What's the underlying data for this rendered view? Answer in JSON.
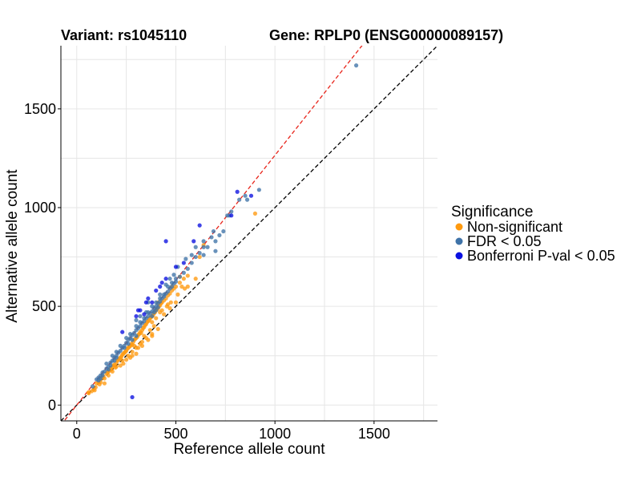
{
  "chart_data": {
    "type": "scatter",
    "title_variant": "Variant: rs1045110",
    "title_gene": "Gene: RPLP0 (ENSG00000089157)",
    "xlabel": "Reference allele count",
    "ylabel": "Alternative allele count",
    "xlim": [
      -80,
      1820
    ],
    "ylim": [
      -80,
      1820
    ],
    "xticks": [
      0,
      500,
      1000,
      1500
    ],
    "yticks": [
      0,
      500,
      1000,
      1500
    ],
    "grid": true,
    "reference_lines": [
      {
        "name": "identity",
        "slope": 1.0,
        "color": "#000000",
        "style": "dashed"
      },
      {
        "name": "fitted",
        "slope": 1.265,
        "color": "#e8251b",
        "style": "dashed"
      }
    ],
    "legend": {
      "title": "Significance",
      "position": "right",
      "items": [
        {
          "label": "Non-significant",
          "color": "#ff9a0f"
        },
        {
          "label": "FDR < 0.05",
          "color": "#3f73a8"
        },
        {
          "label": "Bonferroni P-val < 0.05",
          "color": "#0a10e0"
        }
      ]
    },
    "series": [
      {
        "name": "Non-significant",
        "color": "#ff9a0f",
        "points": [
          [
            60,
            65
          ],
          [
            75,
            70
          ],
          [
            85,
            80
          ],
          [
            95,
            90
          ],
          [
            100,
            110
          ],
          [
            110,
            115
          ],
          [
            115,
            105
          ],
          [
            120,
            130
          ],
          [
            130,
            140
          ],
          [
            135,
            145
          ],
          [
            140,
            135
          ],
          [
            150,
            160
          ],
          [
            155,
            165
          ],
          [
            160,
            170
          ],
          [
            165,
            175
          ],
          [
            170,
            185
          ],
          [
            175,
            180
          ],
          [
            180,
            195
          ],
          [
            185,
            200
          ],
          [
            190,
            205
          ],
          [
            195,
            190
          ],
          [
            200,
            215
          ],
          [
            205,
            225
          ],
          [
            210,
            230
          ],
          [
            215,
            235
          ],
          [
            220,
            240
          ],
          [
            225,
            245
          ],
          [
            230,
            255
          ],
          [
            235,
            260
          ],
          [
            240,
            265
          ],
          [
            245,
            270
          ],
          [
            250,
            275
          ],
          [
            255,
            285
          ],
          [
            260,
            290
          ],
          [
            265,
            295
          ],
          [
            270,
            300
          ],
          [
            275,
            310
          ],
          [
            280,
            305
          ],
          [
            285,
            320
          ],
          [
            290,
            330
          ],
          [
            295,
            335
          ],
          [
            300,
            340
          ],
          [
            305,
            345
          ],
          [
            310,
            355
          ],
          [
            315,
            360
          ],
          [
            320,
            370
          ],
          [
            325,
            365
          ],
          [
            330,
            380
          ],
          [
            335,
            390
          ],
          [
            340,
            395
          ],
          [
            345,
            405
          ],
          [
            350,
            410
          ],
          [
            355,
            420
          ],
          [
            360,
            425
          ],
          [
            365,
            430
          ],
          [
            370,
            440
          ],
          [
            375,
            445
          ],
          [
            380,
            450
          ],
          [
            385,
            455
          ],
          [
            390,
            465
          ],
          [
            395,
            470
          ],
          [
            400,
            480
          ],
          [
            405,
            485
          ],
          [
            410,
            490
          ],
          [
            415,
            500
          ],
          [
            420,
            505
          ],
          [
            425,
            515
          ],
          [
            430,
            520
          ],
          [
            440,
            530
          ],
          [
            450,
            540
          ],
          [
            460,
            555
          ],
          [
            470,
            565
          ],
          [
            480,
            580
          ],
          [
            490,
            590
          ],
          [
            500,
            600
          ],
          [
            520,
            620
          ],
          [
            540,
            640
          ],
          [
            560,
            655
          ],
          [
            280,
            270
          ],
          [
            350,
            340
          ],
          [
            380,
            360
          ],
          [
            300,
            290
          ],
          [
            260,
            250
          ],
          [
            420,
            470
          ],
          [
            460,
            510
          ],
          [
            500,
            520
          ],
          [
            230,
            225
          ],
          [
            180,
            170
          ],
          [
            200,
            195
          ],
          [
            120,
            115
          ],
          [
            160,
            150
          ],
          [
            360,
            330
          ],
          [
            440,
            460
          ],
          [
            470,
            490
          ],
          [
            235,
            210
          ],
          [
            320,
            310
          ],
          [
            380,
            420
          ],
          [
            400,
            440
          ],
          [
            310,
            290
          ],
          [
            270,
            240
          ],
          [
            300,
            260
          ],
          [
            330,
            320
          ],
          [
            220,
            200
          ],
          [
            250,
            230
          ],
          [
            280,
            250
          ],
          [
            290,
            300
          ],
          [
            340,
            350
          ],
          [
            370,
            380
          ],
          [
            390,
            400
          ],
          [
            430,
            480
          ],
          [
            455,
            500
          ],
          [
            475,
            520
          ],
          [
            510,
            560
          ],
          [
            530,
            600
          ],
          [
            545,
            590
          ],
          [
            620,
            750
          ],
          [
            640,
            810
          ],
          [
            900,
            970
          ],
          [
            410,
            520
          ],
          [
            480,
            600
          ],
          [
            520,
            650
          ],
          [
            380,
            350
          ],
          [
            410,
            385
          ],
          [
            330,
            300
          ],
          [
            560,
            600
          ],
          [
            600,
            640
          ],
          [
            140,
            110
          ],
          [
            90,
            75
          ],
          [
            60,
            60
          ]
        ]
      },
      {
        "name": "FDR < 0.05",
        "color": "#3f73a8",
        "points": [
          [
            80,
            95
          ],
          [
            100,
            130
          ],
          [
            110,
            125
          ],
          [
            120,
            150
          ],
          [
            130,
            165
          ],
          [
            140,
            170
          ],
          [
            150,
            185
          ],
          [
            160,
            195
          ],
          [
            170,
            215
          ],
          [
            180,
            225
          ],
          [
            190,
            240
          ],
          [
            200,
            250
          ],
          [
            210,
            265
          ],
          [
            220,
            275
          ],
          [
            230,
            290
          ],
          [
            240,
            300
          ],
          [
            250,
            315
          ],
          [
            260,
            330
          ],
          [
            270,
            340
          ],
          [
            280,
            355
          ],
          [
            290,
            365
          ],
          [
            300,
            380
          ],
          [
            310,
            390
          ],
          [
            320,
            400
          ],
          [
            330,
            415
          ],
          [
            340,
            425
          ],
          [
            350,
            440
          ],
          [
            360,
            450
          ],
          [
            370,
            465
          ],
          [
            380,
            475
          ],
          [
            390,
            490
          ],
          [
            400,
            500
          ],
          [
            410,
            515
          ],
          [
            420,
            525
          ],
          [
            430,
            540
          ],
          [
            440,
            550
          ],
          [
            450,
            565
          ],
          [
            460,
            575
          ],
          [
            470,
            590
          ],
          [
            480,
            600
          ],
          [
            490,
            615
          ],
          [
            500,
            625
          ],
          [
            520,
            650
          ],
          [
            540,
            670
          ],
          [
            560,
            690
          ],
          [
            580,
            720
          ],
          [
            600,
            750
          ],
          [
            620,
            770
          ],
          [
            640,
            800
          ],
          [
            660,
            800
          ],
          [
            700,
            830
          ],
          [
            720,
            860
          ],
          [
            740,
            880
          ],
          [
            760,
            960
          ],
          [
            780,
            980
          ],
          [
            820,
            1040
          ],
          [
            860,
            1040
          ],
          [
            920,
            1090
          ],
          [
            1410,
            1720
          ],
          [
            150,
            210
          ],
          [
            180,
            250
          ],
          [
            200,
            270
          ],
          [
            220,
            300
          ],
          [
            250,
            340
          ],
          [
            270,
            360
          ],
          [
            300,
            400
          ],
          [
            320,
            420
          ],
          [
            340,
            440
          ],
          [
            360,
            470
          ],
          [
            380,
            500
          ],
          [
            400,
            520
          ],
          [
            420,
            540
          ],
          [
            440,
            560
          ],
          [
            460,
            600
          ],
          [
            480,
            620
          ],
          [
            500,
            640
          ],
          [
            350,
            470
          ],
          [
            360,
            520
          ],
          [
            320,
            450
          ],
          [
            300,
            430
          ],
          [
            420,
            560
          ],
          [
            450,
            610
          ],
          [
            470,
            640
          ],
          [
            490,
            660
          ],
          [
            510,
            700
          ],
          [
            550,
            740
          ],
          [
            580,
            760
          ],
          [
            600,
            800
          ],
          [
            640,
            830
          ],
          [
            680,
            850
          ],
          [
            690,
            880
          ],
          [
            770,
            960
          ],
          [
            850,
            1060
          ],
          [
            640,
            760
          ],
          [
            700,
            780
          ],
          [
            300,
            350
          ],
          [
            280,
            330
          ],
          [
            260,
            310
          ],
          [
            240,
            290
          ],
          [
            200,
            240
          ],
          [
            190,
            225
          ],
          [
            170,
            200
          ],
          [
            130,
            150
          ],
          [
            110,
            140
          ],
          [
            120,
            135
          ],
          [
            160,
            180
          ],
          [
            400,
            480
          ],
          [
            380,
            450
          ],
          [
            390,
            470
          ],
          [
            410,
            495
          ]
        ]
      },
      {
        "name": "Bonferroni P-val < 0.05",
        "color": "#0a10e0",
        "points": [
          [
            280,
            40
          ],
          [
            450,
            830
          ],
          [
            320,
            480
          ],
          [
            300,
            450
          ],
          [
            340,
            460
          ],
          [
            310,
            480
          ],
          [
            360,
            540
          ],
          [
            400,
            580
          ],
          [
            350,
            520
          ],
          [
            420,
            600
          ],
          [
            450,
            640
          ],
          [
            500,
            700
          ],
          [
            540,
            720
          ],
          [
            590,
            830
          ],
          [
            620,
            910
          ],
          [
            780,
            960
          ],
          [
            810,
            1080
          ],
          [
            880,
            1060
          ],
          [
            230,
            370
          ],
          [
            380,
            520
          ],
          [
            430,
            620
          ]
        ]
      }
    ]
  }
}
